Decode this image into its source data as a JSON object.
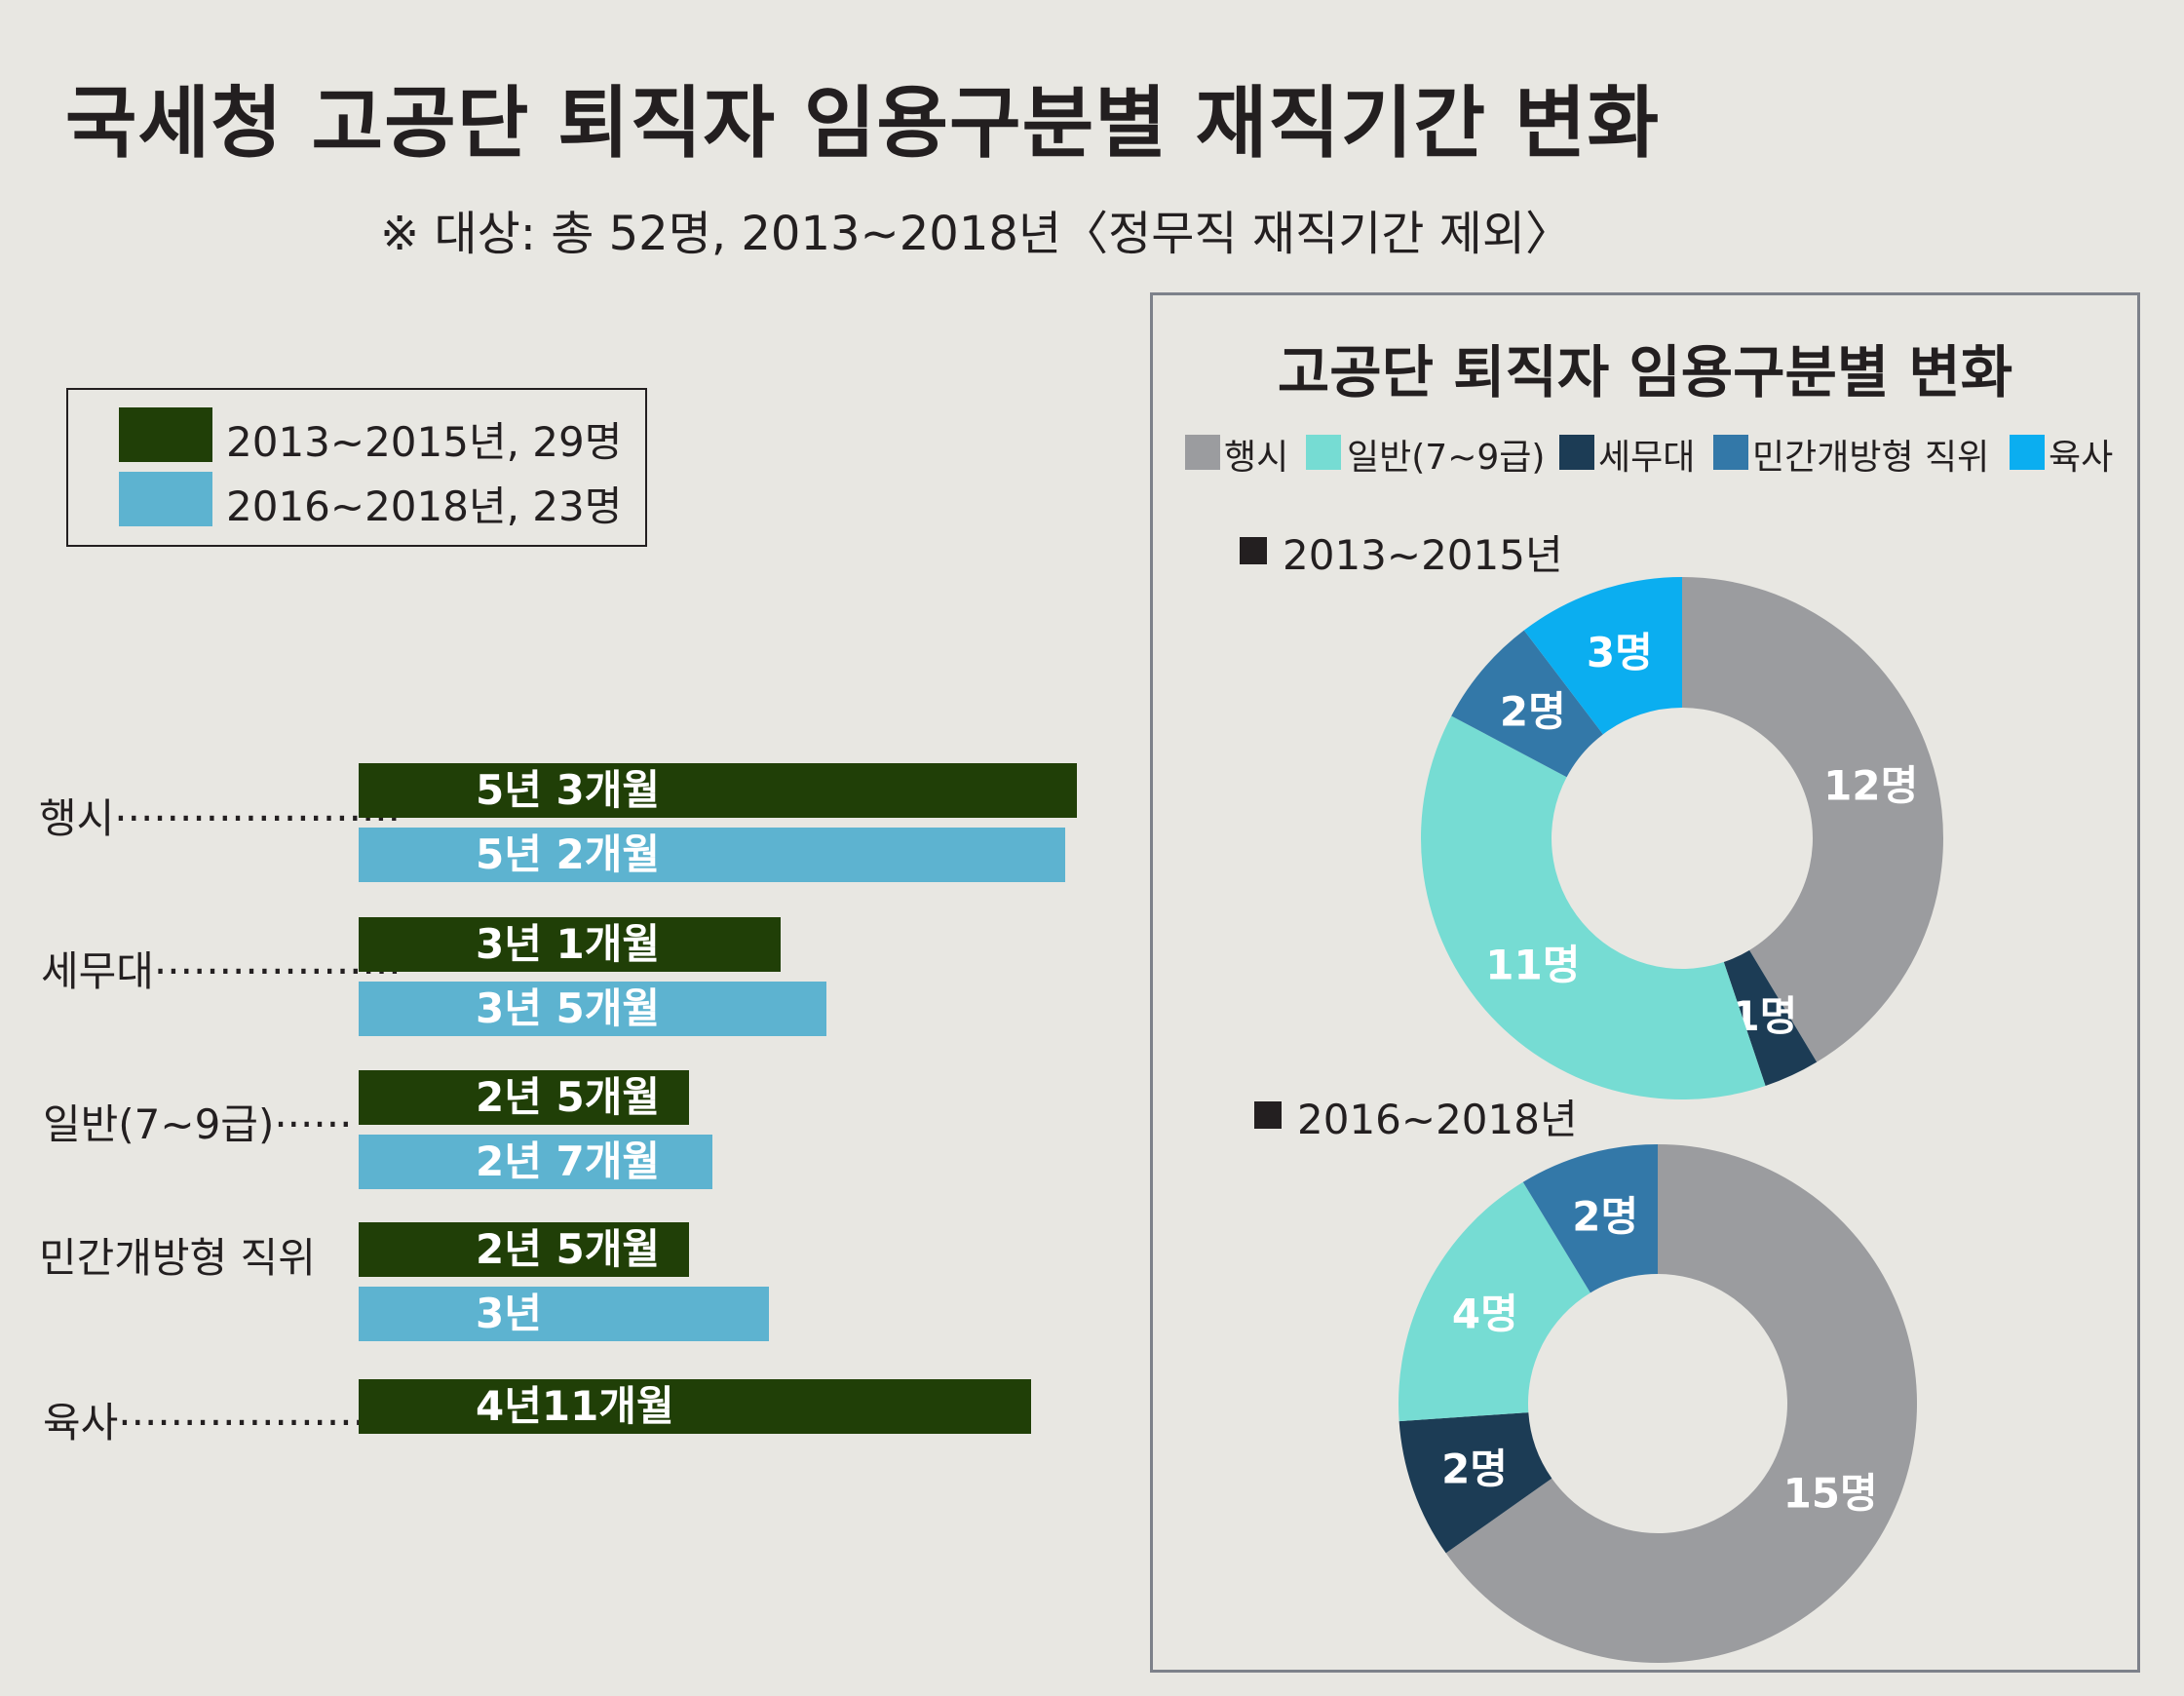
{
  "title": "국세청 고공단 퇴직자 임용구분별 재직기간 변화",
  "subtitle": "※ 대상: 총 52명,  2013~2018년〈정무직 재직기간 제외〉",
  "colors": {
    "background": "#e8e7e2",
    "period1": "#203f07",
    "period2": "#5db3d0",
    "haengsi": "#9b9c9f",
    "ilban": "#76dcd3",
    "semudae": "#1c3c55",
    "mingan": "#3378a8",
    "yuksa": "#0baef0"
  },
  "chart_data": [
    {
      "type": "bar",
      "orientation": "horizontal",
      "legend": [
        {
          "label": "2013~2015년, 29명",
          "color": "#203f07"
        },
        {
          "label": "2016~2018년, 23명",
          "color": "#5db3d0"
        }
      ],
      "legend_position": "top-left",
      "unit_note": "values in months",
      "categories": [
        {
          "label": "행시······················",
          "bars": [
            {
              "series": 0,
              "months": 63,
              "text": "5년 3개월"
            },
            {
              "series": 1,
              "months": 62,
              "text": "5년 2개월"
            }
          ]
        },
        {
          "label": "세무대···················",
          "bars": [
            {
              "series": 0,
              "months": 37,
              "text": "3년 1개월"
            },
            {
              "series": 1,
              "months": 41,
              "text": "3년 5개월"
            }
          ]
        },
        {
          "label": "일반(7~9급)······",
          "bars": [
            {
              "series": 0,
              "months": 29,
              "text": "2년 5개월"
            },
            {
              "series": 1,
              "months": 31,
              "text": "2년 7개월"
            }
          ]
        },
        {
          "label": "민간개방형 직위",
          "bars": [
            {
              "series": 0,
              "months": 29,
              "text": "2년 5개월"
            },
            {
              "series": 1,
              "months": 36,
              "text": "3년"
            }
          ]
        },
        {
          "label": "육사·····················",
          "bars": [
            {
              "series": 0,
              "months": 59,
              "text": "4년11개월"
            }
          ]
        }
      ]
    },
    {
      "type": "pie",
      "variant": "donut",
      "panel_title": "고공단 퇴직자 임용구분별 변화",
      "legend": [
        {
          "label": "행시",
          "color": "#9b9c9f"
        },
        {
          "label": "일반(7~9급)",
          "color": "#76dcd3"
        },
        {
          "label": "세무대",
          "color": "#1c3c55"
        },
        {
          "label": "민간개방형 직위",
          "color": "#3378a8"
        },
        {
          "label": "육사",
          "color": "#0baef0"
        }
      ],
      "charts": [
        {
          "period": "2013~2015년",
          "slices": [
            {
              "category": "행시",
              "value": 12,
              "label": "12명",
              "color": "#9b9c9f"
            },
            {
              "category": "세무대",
              "value": 1,
              "label": "1명",
              "color": "#1c3c55"
            },
            {
              "category": "일반(7~9급)",
              "value": 11,
              "label": "11명",
              "color": "#76dcd3"
            },
            {
              "category": "민간개방형 직위",
              "value": 2,
              "label": "2명",
              "color": "#3378a8"
            },
            {
              "category": "육사",
              "value": 3,
              "label": "3명",
              "color": "#0baef0"
            }
          ]
        },
        {
          "period": "2016~2018년",
          "slices": [
            {
              "category": "행시",
              "value": 15,
              "label": "15명",
              "color": "#9b9c9f"
            },
            {
              "category": "세무대",
              "value": 2,
              "label": "2명",
              "color": "#1c3c55"
            },
            {
              "category": "일반(7~9급)",
              "value": 4,
              "label": "4명",
              "color": "#76dcd3"
            },
            {
              "category": "민간개방형 직위",
              "value": 2,
              "label": "2명",
              "color": "#3378a8"
            }
          ]
        }
      ]
    }
  ]
}
